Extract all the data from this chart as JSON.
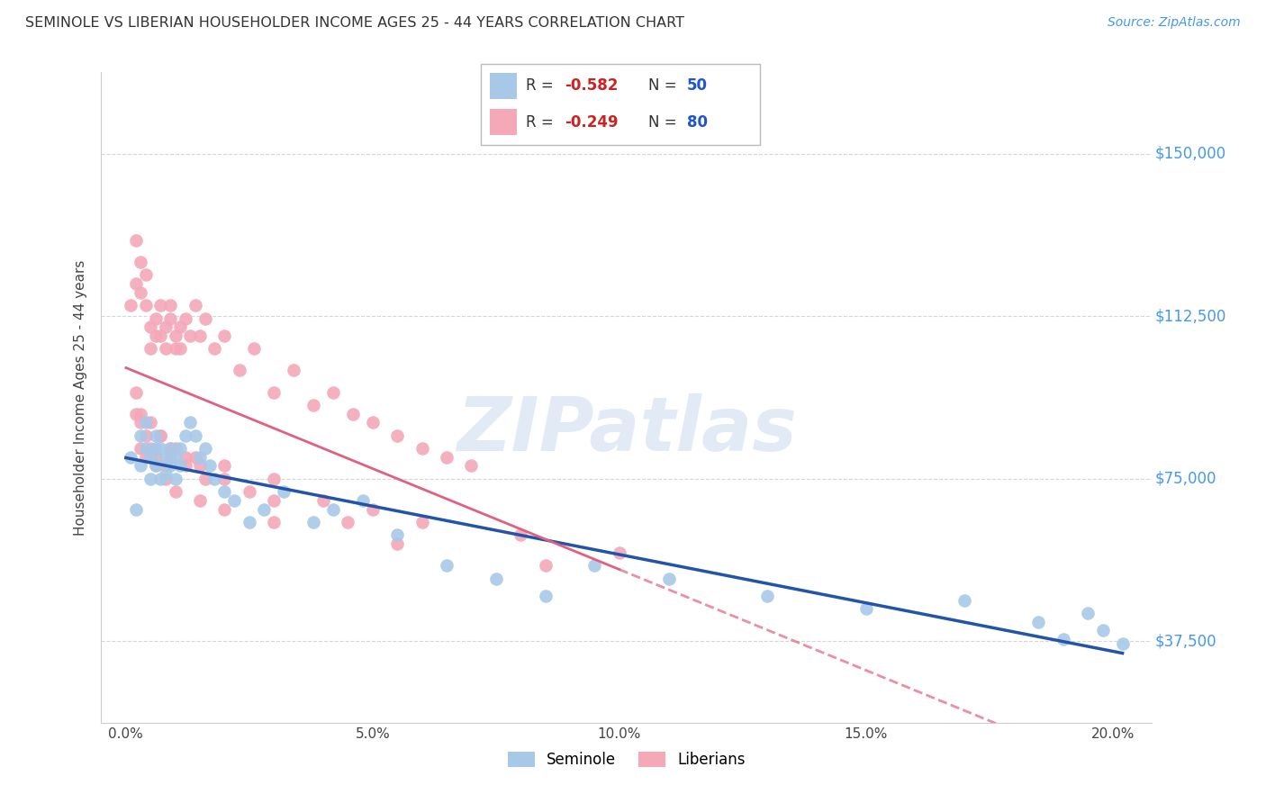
{
  "title": "SEMINOLE VS LIBERIAN HOUSEHOLDER INCOME AGES 25 - 44 YEARS CORRELATION CHART",
  "source": "Source: ZipAtlas.com",
  "ylabel": "Householder Income Ages 25 - 44 years",
  "xlabel_ticks": [
    "0.0%",
    "5.0%",
    "10.0%",
    "15.0%",
    "20.0%"
  ],
  "xlabel_vals": [
    0.0,
    0.05,
    0.1,
    0.15,
    0.2
  ],
  "ytick_labels": [
    "$37,500",
    "$75,000",
    "$112,500",
    "$150,000"
  ],
  "ytick_vals": [
    37500,
    75000,
    112500,
    150000
  ],
  "ymin": 18750,
  "ymax": 168750,
  "xmin": -0.005,
  "xmax": 0.208,
  "watermark": "ZIPatlas",
  "seminole_color": "#a8c8e8",
  "liberian_color": "#f4a8b8",
  "seminole_line_color": "#2255aa",
  "liberian_line_color": "#e06080",
  "background_color": "#ffffff",
  "grid_color": "#cccccc",
  "seminole_x": [
    0.001,
    0.002,
    0.003,
    0.003,
    0.004,
    0.004,
    0.005,
    0.005,
    0.006,
    0.006,
    0.006,
    0.007,
    0.007,
    0.008,
    0.008,
    0.009,
    0.009,
    0.01,
    0.01,
    0.011,
    0.011,
    0.012,
    0.013,
    0.014,
    0.015,
    0.016,
    0.017,
    0.018,
    0.02,
    0.022,
    0.025,
    0.028,
    0.032,
    0.038,
    0.042,
    0.048,
    0.055,
    0.065,
    0.075,
    0.085,
    0.095,
    0.11,
    0.13,
    0.15,
    0.17,
    0.185,
    0.19,
    0.195,
    0.198,
    0.202
  ],
  "seminole_y": [
    80000,
    68000,
    78000,
    85000,
    82000,
    88000,
    75000,
    80000,
    82000,
    78000,
    85000,
    75000,
    82000,
    80000,
    76000,
    78000,
    82000,
    80000,
    75000,
    82000,
    78000,
    85000,
    88000,
    85000,
    80000,
    82000,
    78000,
    75000,
    72000,
    70000,
    65000,
    68000,
    72000,
    65000,
    68000,
    70000,
    62000,
    55000,
    52000,
    48000,
    55000,
    52000,
    48000,
    45000,
    47000,
    42000,
    38000,
    44000,
    40000,
    37000
  ],
  "liberian_x": [
    0.001,
    0.002,
    0.002,
    0.003,
    0.003,
    0.004,
    0.004,
    0.005,
    0.005,
    0.006,
    0.006,
    0.007,
    0.007,
    0.008,
    0.008,
    0.009,
    0.009,
    0.01,
    0.01,
    0.011,
    0.011,
    0.012,
    0.013,
    0.014,
    0.015,
    0.016,
    0.018,
    0.02,
    0.023,
    0.026,
    0.03,
    0.034,
    0.038,
    0.042,
    0.046,
    0.05,
    0.055,
    0.06,
    0.065,
    0.07,
    0.002,
    0.003,
    0.004,
    0.005,
    0.006,
    0.007,
    0.008,
    0.009,
    0.01,
    0.012,
    0.014,
    0.016,
    0.02,
    0.025,
    0.03,
    0.04,
    0.05,
    0.06,
    0.08,
    0.1,
    0.002,
    0.003,
    0.005,
    0.007,
    0.009,
    0.012,
    0.015,
    0.02,
    0.03,
    0.045,
    0.003,
    0.004,
    0.006,
    0.008,
    0.01,
    0.015,
    0.02,
    0.03,
    0.055,
    0.085
  ],
  "liberian_y": [
    115000,
    130000,
    120000,
    125000,
    118000,
    115000,
    122000,
    110000,
    105000,
    108000,
    112000,
    108000,
    115000,
    105000,
    110000,
    112000,
    115000,
    105000,
    108000,
    110000,
    105000,
    112000,
    108000,
    115000,
    108000,
    112000,
    105000,
    108000,
    100000,
    105000,
    95000,
    100000,
    92000,
    95000,
    90000,
    88000,
    85000,
    82000,
    80000,
    78000,
    90000,
    88000,
    85000,
    82000,
    80000,
    85000,
    78000,
    80000,
    82000,
    78000,
    80000,
    75000,
    78000,
    72000,
    75000,
    70000,
    68000,
    65000,
    62000,
    58000,
    95000,
    90000,
    88000,
    85000,
    82000,
    80000,
    78000,
    75000,
    70000,
    65000,
    82000,
    80000,
    78000,
    75000,
    72000,
    70000,
    68000,
    65000,
    60000,
    55000
  ]
}
